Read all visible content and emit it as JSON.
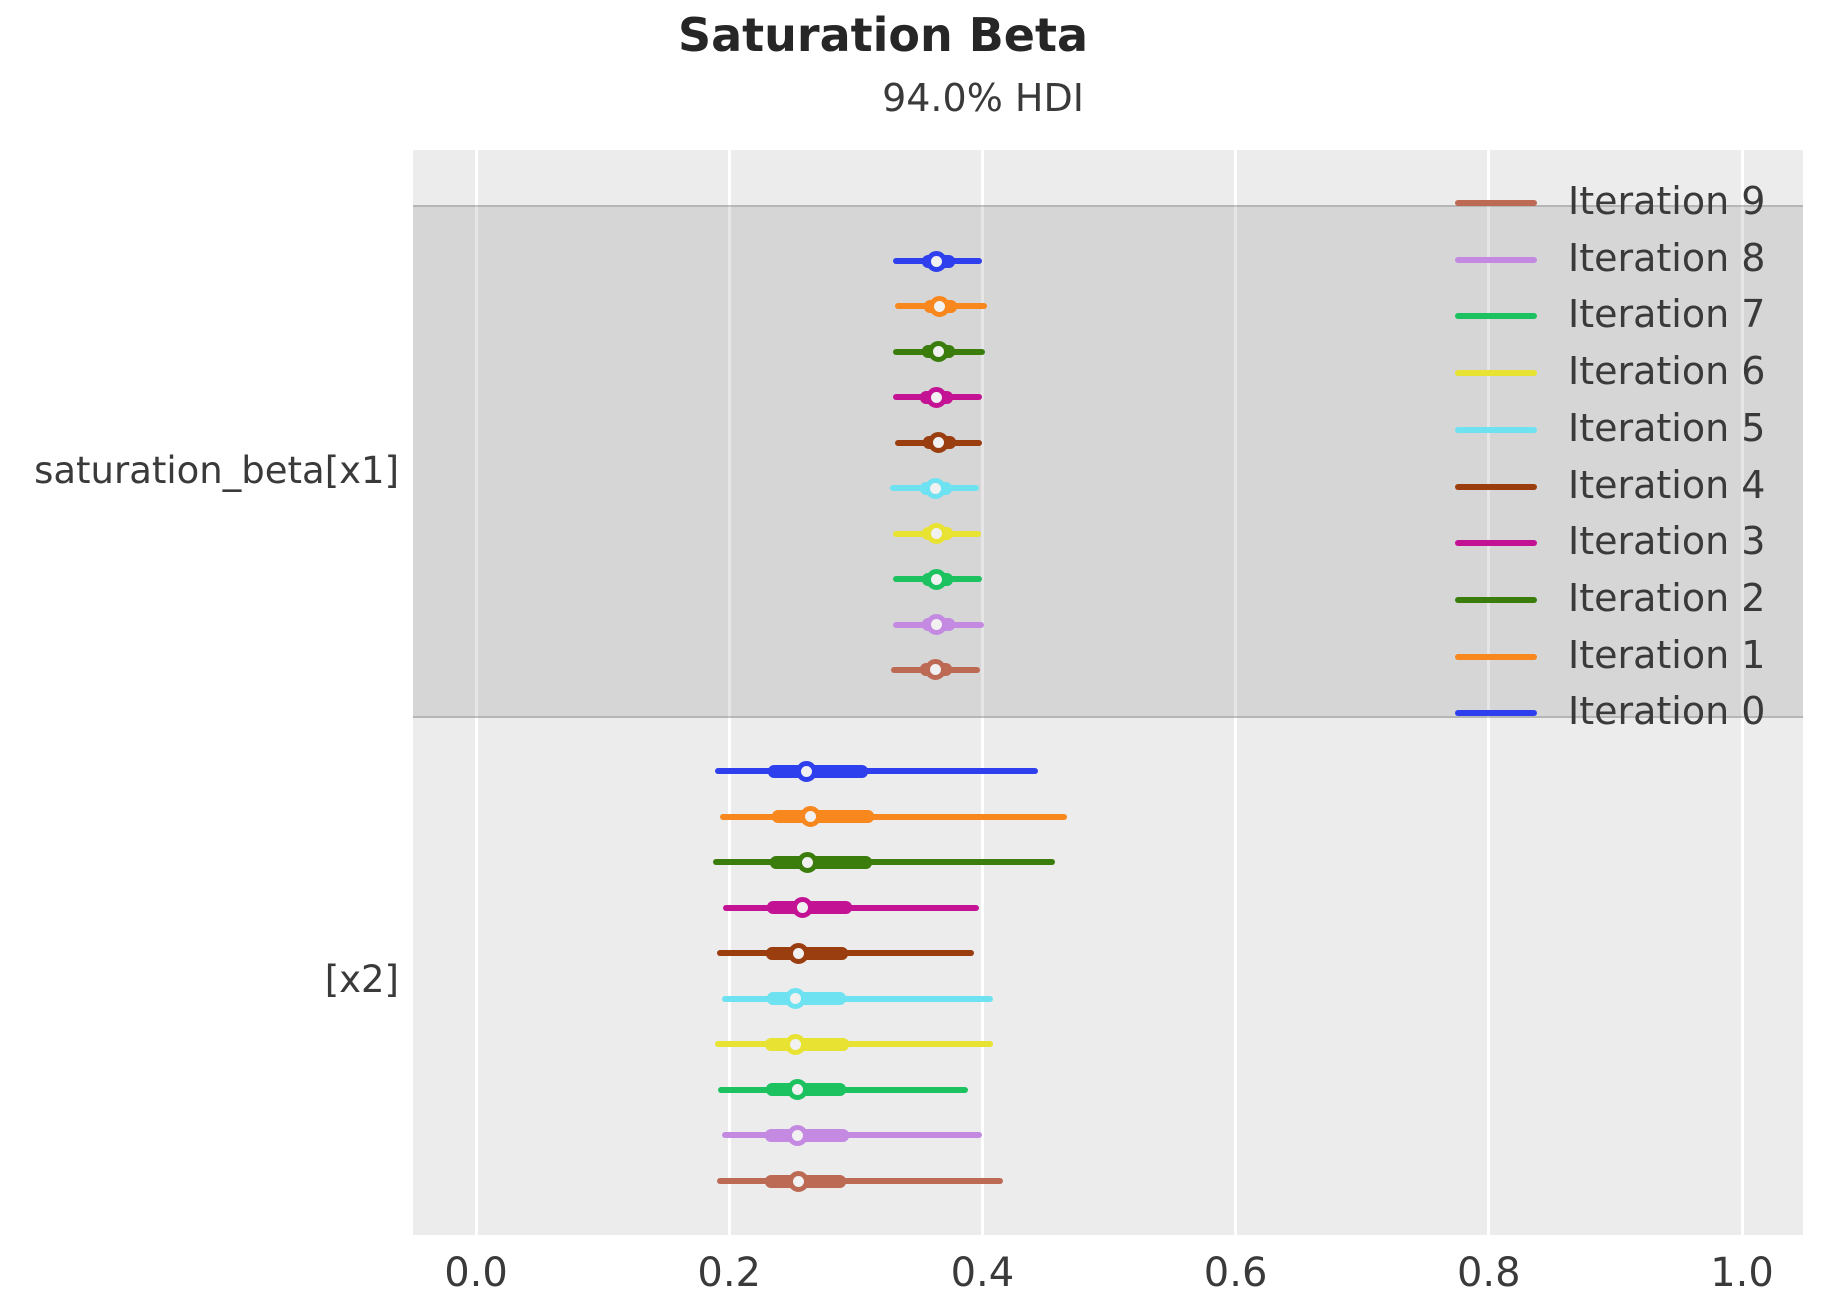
{
  "title": "Saturation Beta",
  "subtitle": "94.0% HDI",
  "palette": {
    "iteration_0": "#2e3fee",
    "iteration_1": "#f8871e",
    "iteration_2": "#3a7d0d",
    "iteration_3": "#c41295",
    "iteration_4": "#9a3d0f",
    "iteration_5": "#6fe2f2",
    "iteration_6": "#e8e332",
    "iteration_7": "#1cc25f",
    "iteration_8": "#c48ae2",
    "iteration_9": "#bd6a55",
    "plot_background": "#ececec",
    "band_fill": "#d6d6d6",
    "gridline": "#ffffff",
    "text": "#3a3a3a"
  },
  "chart_data": {
    "type": "forest",
    "title": "Saturation Beta",
    "subtitle": "94.0% HDI",
    "hdi_prob": 0.94,
    "xlim": [
      -0.05,
      1.05
    ],
    "x_ticks": [
      {
        "value": 0.0,
        "label": "0.0"
      },
      {
        "value": 0.2,
        "label": "0.2"
      },
      {
        "value": 0.4,
        "label": "0.4"
      },
      {
        "value": 0.6,
        "label": "0.6"
      },
      {
        "value": 0.8,
        "label": "0.8"
      },
      {
        "value": 1.0,
        "label": "1.0"
      }
    ],
    "grid": true,
    "legend_position": "upper right",
    "legend": [
      {
        "label": "Iteration 9",
        "color": "#bd6a55"
      },
      {
        "label": "Iteration 8",
        "color": "#c48ae2"
      },
      {
        "label": "Iteration 7",
        "color": "#1cc25f"
      },
      {
        "label": "Iteration 6",
        "color": "#e8e332"
      },
      {
        "label": "Iteration 5",
        "color": "#6fe2f2"
      },
      {
        "label": "Iteration 4",
        "color": "#9a3d0f"
      },
      {
        "label": "Iteration 3",
        "color": "#c41295"
      },
      {
        "label": "Iteration 2",
        "color": "#3a7d0d"
      },
      {
        "label": "Iteration 1",
        "color": "#f8871e"
      },
      {
        "label": "Iteration 0",
        "color": "#2e3fee"
      }
    ],
    "variables": [
      {
        "label": "saturation_beta[x1]",
        "shaded_band": true,
        "rows": [
          {
            "iteration": "Iteration 0",
            "color": "#2e3fee",
            "hdi": [
              0.329,
              0.4
            ],
            "quartile": [
              0.352,
              0.378
            ],
            "median": 0.364
          },
          {
            "iteration": "Iteration 1",
            "color": "#f8871e",
            "hdi": [
              0.331,
              0.404
            ],
            "quartile": [
              0.354,
              0.38
            ],
            "median": 0.366
          },
          {
            "iteration": "Iteration 2",
            "color": "#3a7d0d",
            "hdi": [
              0.329,
              0.402
            ],
            "quartile": [
              0.352,
              0.378
            ],
            "median": 0.365
          },
          {
            "iteration": "Iteration 3",
            "color": "#c41295",
            "hdi": [
              0.329,
              0.4
            ],
            "quartile": [
              0.351,
              0.377
            ],
            "median": 0.364
          },
          {
            "iteration": "Iteration 4",
            "color": "#9a3d0f",
            "hdi": [
              0.331,
              0.4
            ],
            "quartile": [
              0.353,
              0.379
            ],
            "median": 0.365
          },
          {
            "iteration": "Iteration 5",
            "color": "#6fe2f2",
            "hdi": [
              0.327,
              0.397
            ],
            "quartile": [
              0.351,
              0.376
            ],
            "median": 0.363
          },
          {
            "iteration": "Iteration 6",
            "color": "#e8e332",
            "hdi": [
              0.329,
              0.399
            ],
            "quartile": [
              0.352,
              0.377
            ],
            "median": 0.364
          },
          {
            "iteration": "Iteration 7",
            "color": "#1cc25f",
            "hdi": [
              0.329,
              0.4
            ],
            "quartile": [
              0.352,
              0.377
            ],
            "median": 0.364
          },
          {
            "iteration": "Iteration 8",
            "color": "#c48ae2",
            "hdi": [
              0.329,
              0.401
            ],
            "quartile": [
              0.352,
              0.378
            ],
            "median": 0.364
          },
          {
            "iteration": "Iteration 9",
            "color": "#bd6a55",
            "hdi": [
              0.328,
              0.398
            ],
            "quartile": [
              0.351,
              0.376
            ],
            "median": 0.363
          }
        ]
      },
      {
        "label": "[x2]",
        "shaded_band": false,
        "rows": [
          {
            "iteration": "Iteration 0",
            "color": "#2e3fee",
            "hdi": [
              0.189,
              0.444
            ],
            "quartile": [
              0.231,
              0.31
            ],
            "median": 0.261
          },
          {
            "iteration": "Iteration 1",
            "color": "#f8871e",
            "hdi": [
              0.193,
              0.467
            ],
            "quartile": [
              0.234,
              0.314
            ],
            "median": 0.264
          },
          {
            "iteration": "Iteration 2",
            "color": "#3a7d0d",
            "hdi": [
              0.187,
              0.457
            ],
            "quartile": [
              0.232,
              0.313
            ],
            "median": 0.262
          },
          {
            "iteration": "Iteration 3",
            "color": "#c41295",
            "hdi": [
              0.195,
              0.397
            ],
            "quartile": [
              0.23,
              0.297
            ],
            "median": 0.258
          },
          {
            "iteration": "Iteration 4",
            "color": "#9a3d0f",
            "hdi": [
              0.19,
              0.393
            ],
            "quartile": [
              0.229,
              0.294
            ],
            "median": 0.255
          },
          {
            "iteration": "Iteration 5",
            "color": "#6fe2f2",
            "hdi": [
              0.194,
              0.408
            ],
            "quartile": [
              0.23,
              0.292
            ],
            "median": 0.252
          },
          {
            "iteration": "Iteration 6",
            "color": "#e8e332",
            "hdi": [
              0.189,
              0.408
            ],
            "quartile": [
              0.228,
              0.295
            ],
            "median": 0.252
          },
          {
            "iteration": "Iteration 7",
            "color": "#1cc25f",
            "hdi": [
              0.191,
              0.389
            ],
            "quartile": [
              0.229,
              0.292
            ],
            "median": 0.254
          },
          {
            "iteration": "Iteration 8",
            "color": "#c48ae2",
            "hdi": [
              0.194,
              0.4
            ],
            "quartile": [
              0.228,
              0.295
            ],
            "median": 0.254
          },
          {
            "iteration": "Iteration 9",
            "color": "#bd6a55",
            "hdi": [
              0.19,
              0.416
            ],
            "quartile": [
              0.228,
              0.292
            ],
            "median": 0.255
          }
        ]
      }
    ]
  }
}
